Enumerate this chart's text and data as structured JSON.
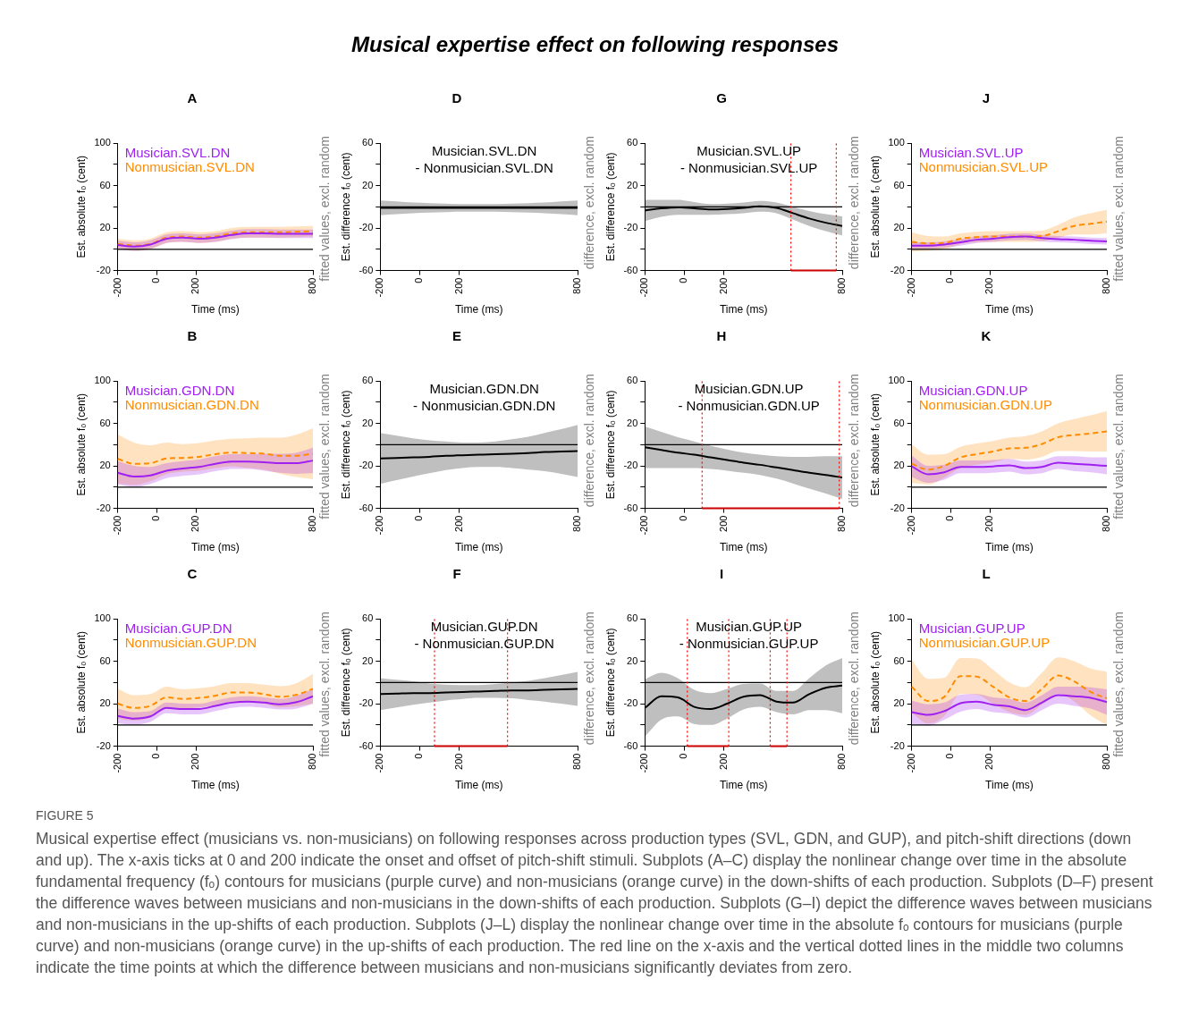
{
  "chart_data": [
    {
      "type": "other",
      "title": "Musical expertise effect on following responses",
      "annotations": [
        "FIGURE 5",
        "Musical expertise effect (musicians vs. non-musicians) on following responses across production types (SVL, GDN, and GUP), and pitch-shift directions (down and up). The x-axis ticks at 0 and 200 indicate the onset and offset of pitch-shift stimuli. Subplots (A–C) display the nonlinear change over time in the absolute fundamental frequency (fₒ) contours for musicians (purple curve) and non-musicians (orange curve) in the down-shifts of each production. Subplots (D–F) present the difference waves between musicians and non-musicians in the down-shifts of each production. Subplots (G–I) depict the difference waves between musicians and non-musicians in the up-shifts of each production. Subplots (J–L) display the nonlinear change over time in the absolute fₒ contours for musicians (purple curve) and non-musicians (orange curve) in the up-shifts of each production. The red line on the x-axis and the vertical dotted lines in the middle two columns indicate the time points at which the difference between musicians and non-musicians significantly deviates from zero."
      ]
    },
    {
      "type": "line",
      "title": "A",
      "xlabel": "Time (ms)",
      "ylabel": "Est. absolute fₒ (cent)",
      "y2label": "fitted values, excl. random",
      "legend": "top left",
      "xlim": [
        -200,
        800
      ],
      "xticks": [
        -200,
        0,
        200,
        800
      ],
      "ylim": [
        -20,
        100
      ],
      "yticks": [
        -20,
        {
          "value": 0,
          "label": null
        },
        20,
        {
          "value": 40,
          "label": null
        },
        60,
        {
          "value": 80,
          "label": null
        },
        100
      ],
      "ref_lines": [
        {
          "axis": "y",
          "value": 0,
          "color": "#000000",
          "line_style": "solid"
        }
      ],
      "x": [
        -200,
        -117,
        -33,
        50,
        133,
        217,
        300,
        383,
        467,
        550,
        633,
        717,
        800
      ],
      "series": [
        {
          "name": "Musician.SVL.DN",
          "color": "#a020f0",
          "line_style": "solid",
          "values": [
            4,
            2.5,
            4.5,
            10,
            11,
            10,
            11,
            13.5,
            15,
            15,
            14.5,
            14.5,
            14.5
          ],
          "lower": [
            0,
            -1.5,
            0.5,
            6,
            7,
            6,
            7,
            9.5,
            11,
            11,
            10.5,
            10.5,
            10.5
          ],
          "upper": [
            8,
            6.5,
            8.5,
            14,
            15,
            14,
            15,
            17.5,
            19,
            19,
            18.5,
            18.5,
            18.5
          ]
        },
        {
          "name": "Nonmusician.SVL.DN",
          "color": "#ff8c00",
          "line_style": "dashed",
          "values": [
            5,
            3.5,
            5,
            11,
            12,
            11,
            12,
            15,
            16,
            16,
            16,
            16.5,
            17
          ],
          "lower": [
            0,
            -1.5,
            0,
            6,
            7,
            6,
            7,
            10,
            11,
            11,
            11,
            11.5,
            12
          ],
          "upper": [
            10,
            8.5,
            10,
            16,
            17,
            16,
            17,
            20,
            21,
            21,
            21,
            21.5,
            22
          ]
        }
      ]
    },
    {
      "type": "line",
      "title": "D",
      "xlabel": "Time (ms)",
      "ylabel": "Est. difference fₒ (cent)",
      "y2label": "difference, excl. random",
      "annotations": [
        "Musician.SVL.DN",
        "- Nonmusician.SVL.DN"
      ],
      "xlim": [
        -200,
        800
      ],
      "xticks": [
        -200,
        0,
        200,
        800
      ],
      "ylim": [
        -60,
        60
      ],
      "yticks": [
        -60,
        {
          "value": -40,
          "label": null
        },
        -20,
        {
          "value": 0,
          "label": null
        },
        20,
        {
          "value": 40,
          "label": null
        },
        60
      ],
      "ref_lines": [
        {
          "axis": "y",
          "value": 0,
          "color": "#000000",
          "line_style": "solid"
        }
      ],
      "x": [
        -200,
        -117,
        -33,
        50,
        133,
        217,
        300,
        383,
        467,
        550,
        633,
        717,
        800
      ],
      "series": [
        {
          "color": "#000000",
          "line_style": "solid",
          "values": [
            -1,
            -1,
            -1,
            -1,
            -1,
            -1,
            -1,
            -1,
            -1,
            -1,
            -1,
            -1,
            -1
          ],
          "lower": [
            -8,
            -7,
            -6,
            -5.5,
            -5,
            -4.5,
            -4.5,
            -4.5,
            -5,
            -5.5,
            -6,
            -7,
            -8
          ],
          "upper": [
            6,
            5,
            4,
            3.5,
            3,
            2.5,
            2.5,
            2.5,
            3,
            3.5,
            4,
            5,
            6
          ]
        }
      ]
    },
    {
      "type": "line",
      "title": "G",
      "xlabel": "Time (ms)",
      "ylabel": "Est. difference fₒ (cent)",
      "y2label": "difference, excl. random",
      "annotations": [
        "Musician.SVL.UP",
        "- Nonmusician.SVL.UP"
      ],
      "xlim": [
        -200,
        800
      ],
      "xticks": [
        -200,
        0,
        200,
        800
      ],
      "ylim": [
        -60,
        60
      ],
      "yticks": [
        -60,
        {
          "value": -40,
          "label": null
        },
        -20,
        {
          "value": 0,
          "label": null
        },
        20,
        {
          "value": 40,
          "label": null
        },
        60
      ],
      "ref_lines": [
        {
          "axis": "y",
          "value": 0,
          "color": "#000000",
          "line_style": "solid"
        },
        {
          "axis": "x",
          "value": 540,
          "color": "#ff0000",
          "line_style": "dotted"
        },
        {
          "axis": "x",
          "value": 770,
          "color": "#ff0000",
          "line_style": "dotted"
        }
      ],
      "x": [
        -200,
        -117,
        -33,
        50,
        133,
        217,
        300,
        383,
        467,
        550,
        633,
        717,
        800
      ],
      "series": [
        {
          "color": "#000000",
          "line_style": "solid",
          "values": [
            -3.5,
            -1.5,
            -0.5,
            -1.5,
            -2.5,
            -2,
            -1,
            0.5,
            -1,
            -6,
            -11,
            -15,
            -18
          ],
          "lower": [
            -13.5,
            -9.5,
            -7.5,
            -7.5,
            -7.5,
            -7,
            -6,
            -4.5,
            -6,
            -12,
            -18,
            -23,
            -27
          ],
          "upper": [
            6.5,
            6.5,
            6.5,
            4.5,
            2.5,
            3,
            4,
            5.5,
            4,
            0,
            -4,
            -7,
            -9
          ]
        },
        {
          "type": "line",
          "color": "#cc0000",
          "line_style": "solid",
          "x": [
            540,
            770
          ],
          "values": [
            -60,
            -60
          ]
        }
      ]
    },
    {
      "type": "line",
      "title": "J",
      "xlabel": "Time (ms)",
      "ylabel": "Est. absolute fₒ (cent)",
      "y2label": "fitted values, excl. random",
      "legend": "top left",
      "xlim": [
        -200,
        800
      ],
      "xticks": [
        -200,
        0,
        200,
        800
      ],
      "ylim": [
        -20,
        100
      ],
      "yticks": [
        -20,
        {
          "value": 0,
          "label": null
        },
        20,
        {
          "value": 40,
          "label": null
        },
        60,
        {
          "value": 80,
          "label": null
        },
        100
      ],
      "ref_lines": [
        {
          "axis": "y",
          "value": 0,
          "color": "#000000",
          "line_style": "solid"
        }
      ],
      "x": [
        -200,
        -117,
        -33,
        50,
        133,
        217,
        300,
        383,
        467,
        550,
        633,
        717,
        800
      ],
      "series": [
        {
          "name": "Musician.SVL.UP",
          "color": "#a020f0",
          "line_style": "solid",
          "values": [
            3.5,
            3.5,
            4.5,
            6.5,
            9,
            10,
            11.5,
            12,
            10.5,
            9.5,
            9,
            8,
            7.5
          ],
          "lower": [
            0.5,
            0.5,
            1.5,
            3.5,
            6,
            7,
            8.5,
            9,
            7.5,
            6.5,
            6,
            5,
            4.5
          ],
          "upper": [
            6.5,
            6.5,
            7.5,
            9.5,
            12,
            13,
            14.5,
            15,
            13.5,
            12.5,
            12,
            11,
            10.5
          ]
        },
        {
          "name": "Nonmusician.SVL.UP",
          "color": "#ff8c00",
          "line_style": "dashed",
          "values": [
            7,
            5.5,
            6,
            10,
            11.5,
            12,
            12,
            12,
            12.5,
            17,
            22,
            24,
            26
          ],
          "lower": [
            -2,
            -1.5,
            0,
            5,
            6.5,
            7,
            7,
            7,
            7.5,
            11,
            14,
            14,
            15
          ],
          "upper": [
            16,
            12.5,
            12,
            15,
            16.5,
            17,
            17,
            17,
            17.5,
            23,
            30,
            34,
            37
          ]
        }
      ]
    },
    {
      "type": "line",
      "title": "B",
      "xlabel": "Time (ms)",
      "ylabel": "Est. absolute fₒ (cent)",
      "y2label": "fitted values, excl. random",
      "legend": "top left",
      "xlim": [
        -200,
        800
      ],
      "xticks": [
        -200,
        0,
        200,
        800
      ],
      "ylim": [
        -20,
        100
      ],
      "yticks": [
        -20,
        {
          "value": 0,
          "label": null
        },
        20,
        {
          "value": 40,
          "label": null
        },
        60,
        {
          "value": 80,
          "label": null
        },
        100
      ],
      "ref_lines": [
        {
          "axis": "y",
          "value": 0,
          "color": "#000000",
          "line_style": "solid"
        }
      ],
      "x": [
        -200,
        -117,
        -33,
        50,
        133,
        217,
        300,
        383,
        467,
        550,
        633,
        717,
        800
      ],
      "series": [
        {
          "name": "Musician.GDN.DN",
          "color": "#a020f0",
          "line_style": "solid",
          "values": [
            13.5,
            10,
            11,
            15.5,
            17.5,
            19,
            22,
            24,
            24,
            23.5,
            22.5,
            22.5,
            25
          ],
          "lower": [
            2.5,
            0,
            3,
            8.5,
            10.5,
            12,
            15,
            17,
            17,
            15.5,
            13.5,
            12.5,
            13
          ],
          "upper": [
            24.5,
            20,
            19,
            22.5,
            24.5,
            26,
            29,
            31,
            31,
            31.5,
            31.5,
            32.5,
            37
          ]
        },
        {
          "name": "Nonmusician.GDN.DN",
          "color": "#ff8c00",
          "line_style": "dashed",
          "values": [
            26.5,
            22,
            22.5,
            27,
            27.5,
            28.5,
            31,
            32.5,
            32,
            31.5,
            29.5,
            29.5,
            31.5
          ],
          "lower": [
            3.5,
            2,
            5.5,
            12,
            14.5,
            15.5,
            18,
            19.5,
            18,
            16.5,
            12.5,
            9.5,
            7.5
          ],
          "upper": [
            49.5,
            42,
            39.5,
            42,
            40.5,
            41.5,
            44,
            45.5,
            46,
            46.5,
            46.5,
            49.5,
            55.5
          ]
        }
      ]
    },
    {
      "type": "line",
      "title": "E",
      "xlabel": "Time (ms)",
      "ylabel": "Est. difference fₒ (cent)",
      "y2label": "difference, excl. random",
      "annotations": [
        "Musician.GDN.DN",
        "- Nonmusician.GDN.DN"
      ],
      "xlim": [
        -200,
        800
      ],
      "xticks": [
        -200,
        0,
        200,
        800
      ],
      "ylim": [
        -60,
        60
      ],
      "yticks": [
        -60,
        {
          "value": -40,
          "label": null
        },
        -20,
        {
          "value": 0,
          "label": null
        },
        20,
        {
          "value": 40,
          "label": null
        },
        60
      ],
      "ref_lines": [
        {
          "axis": "y",
          "value": 0,
          "color": "#000000",
          "line_style": "solid"
        }
      ],
      "x": [
        -200,
        -117,
        -33,
        50,
        133,
        217,
        300,
        383,
        467,
        550,
        633,
        717,
        800
      ],
      "series": [
        {
          "color": "#000000",
          "line_style": "solid",
          "values": [
            -13,
            -12.5,
            -12,
            -11.5,
            -10.5,
            -10,
            -9.5,
            -9,
            -8.5,
            -8,
            -7,
            -6.5,
            -6
          ],
          "lower": [
            -37,
            -33.5,
            -30,
            -27,
            -24,
            -22,
            -21,
            -21,
            -22,
            -23.5,
            -25,
            -27.5,
            -30.5
          ],
          "upper": [
            11,
            8.5,
            6,
            4,
            3,
            2,
            2,
            3,
            5,
            7.5,
            11,
            14.5,
            18.5
          ]
        }
      ]
    },
    {
      "type": "line",
      "title": "H",
      "xlabel": "Time (ms)",
      "ylabel": "Est. difference fₒ (cent)",
      "y2label": "difference, excl. random",
      "annotations": [
        "Musician.GDN.UP",
        "- Nonmusician.GDN.UP"
      ],
      "xlim": [
        -200,
        800
      ],
      "xticks": [
        -200,
        0,
        200,
        800
      ],
      "ylim": [
        -60,
        60
      ],
      "yticks": [
        -60,
        {
          "value": -40,
          "label": null
        },
        -20,
        {
          "value": 0,
          "label": null
        },
        20,
        {
          "value": 40,
          "label": null
        },
        60
      ],
      "ref_lines": [
        {
          "axis": "y",
          "value": 0,
          "color": "#000000",
          "line_style": "solid"
        },
        {
          "axis": "x",
          "value": 90,
          "color": "#ff0000",
          "line_style": "dotted"
        },
        {
          "axis": "x",
          "value": 785,
          "color": "#ff0000",
          "line_style": "dotted"
        }
      ],
      "x": [
        -200,
        -117,
        -33,
        50,
        133,
        217,
        300,
        383,
        467,
        550,
        633,
        717,
        800
      ],
      "series": [
        {
          "color": "#000000",
          "line_style": "solid",
          "values": [
            -2.5,
            -5,
            -7.5,
            -9.5,
            -12,
            -14.5,
            -17,
            -19,
            -21.5,
            -24,
            -26.5,
            -28.5,
            -31
          ],
          "lower": [
            -22,
            -22,
            -22,
            -22,
            -23,
            -24.5,
            -26.5,
            -28.5,
            -32,
            -36.5,
            -41.5,
            -46,
            -51
          ],
          "upper": [
            17,
            12,
            7,
            3,
            -1,
            -4.5,
            -7.5,
            -9.5,
            -11,
            -11.5,
            -11.5,
            -11,
            -11
          ]
        },
        {
          "type": "line",
          "color": "#cc0000",
          "line_style": "solid",
          "x": [
            90,
            785
          ],
          "values": [
            -60,
            -60
          ]
        }
      ]
    },
    {
      "type": "line",
      "title": "K",
      "xlabel": "Time (ms)",
      "ylabel": "Est. absolute fₒ (cent)",
      "y2label": "fitted values, excl. random",
      "legend": "top left",
      "xlim": [
        -200,
        800
      ],
      "xticks": [
        -200,
        0,
        200,
        800
      ],
      "ylim": [
        -20,
        100
      ],
      "yticks": [
        -20,
        {
          "value": 0,
          "label": null
        },
        20,
        {
          "value": 40,
          "label": null
        },
        60,
        {
          "value": 80,
          "label": null
        },
        100
      ],
      "ref_lines": [
        {
          "axis": "y",
          "value": 0,
          "color": "#000000",
          "line_style": "solid"
        }
      ],
      "x": [
        -200,
        -117,
        -33,
        50,
        133,
        217,
        300,
        383,
        467,
        550,
        633,
        717,
        800
      ],
      "series": [
        {
          "name": "Musician.GDN.UP",
          "color": "#a020f0",
          "line_style": "solid",
          "values": [
            19.5,
            12,
            14,
            19,
            19,
            19.5,
            20.5,
            18,
            19,
            23,
            22,
            21,
            20
          ],
          "lower": [
            9.5,
            4,
            7,
            13,
            13,
            13.5,
            14.5,
            12,
            13,
            17,
            15,
            14,
            12
          ],
          "upper": [
            29.5,
            20,
            21,
            25,
            25,
            25.5,
            26.5,
            24,
            25,
            29,
            29,
            28,
            28
          ]
        },
        {
          "name": "Nonmusician.GDN.UP",
          "color": "#ff8c00",
          "line_style": "dashed",
          "values": [
            22,
            16.5,
            20,
            28,
            31,
            33.5,
            36.5,
            37,
            40.5,
            47,
            49,
            50.5,
            52.5
          ],
          "lower": [
            4,
            2.5,
            9,
            18,
            21,
            23.5,
            26.5,
            26,
            28.5,
            34,
            34,
            33.5,
            33.5
          ],
          "upper": [
            40,
            30.5,
            31,
            38,
            41,
            43.5,
            46.5,
            48,
            52.5,
            60,
            64,
            67.5,
            71.5
          ]
        }
      ]
    },
    {
      "type": "line",
      "title": "C",
      "xlabel": "Time (ms)",
      "ylabel": "Est. absolute fₒ (cent)",
      "y2label": "fitted values, excl. random",
      "legend": "top left",
      "xlim": [
        -200,
        800
      ],
      "xticks": [
        -200,
        0,
        200,
        800
      ],
      "ylim": [
        -20,
        100
      ],
      "yticks": [
        -20,
        {
          "value": 0,
          "label": null
        },
        20,
        {
          "value": 40,
          "label": null
        },
        60,
        {
          "value": 80,
          "label": null
        },
        100
      ],
      "ref_lines": [
        {
          "axis": "y",
          "value": 0,
          "color": "#000000",
          "line_style": "solid"
        }
      ],
      "x": [
        -200,
        -117,
        -33,
        50,
        133,
        217,
        300,
        383,
        467,
        550,
        633,
        717,
        800
      ],
      "series": [
        {
          "name": "Musician.GUP.DN",
          "color": "#a020f0",
          "line_style": "solid",
          "values": [
            8.5,
            6,
            8,
            16,
            15,
            15,
            18,
            21,
            22,
            21,
            19.5,
            21.5,
            27
          ],
          "lower": [
            1.5,
            0,
            3,
            11,
            10,
            10,
            13,
            16,
            17,
            16,
            14.5,
            15.5,
            20
          ],
          "upper": [
            15.5,
            12,
            13,
            21,
            20,
            20,
            23,
            26,
            27,
            26,
            24.5,
            27.5,
            34
          ]
        },
        {
          "name": "Nonmusician.GUP.DN",
          "color": "#ff8c00",
          "line_style": "dashed",
          "values": [
            20,
            16,
            18,
            26,
            24.5,
            25.5,
            27.5,
            30.5,
            30.5,
            29,
            26.5,
            28.5,
            34
          ],
          "lower": [
            6,
            4,
            7,
            16,
            15.5,
            16.5,
            18.5,
            21.5,
            21.5,
            20,
            16.5,
            17.5,
            20
          ],
          "upper": [
            34,
            28,
            29,
            36,
            33.5,
            34.5,
            36.5,
            39.5,
            39.5,
            38,
            36.5,
            39.5,
            48
          ]
        }
      ]
    },
    {
      "type": "line",
      "title": "F",
      "xlabel": "Time (ms)",
      "ylabel": "Est. difference fₒ (cent)",
      "y2label": "difference, excl. random",
      "annotations": [
        "Musician.GUP.DN",
        "- Nonmusician.GUP.DN"
      ],
      "xlim": [
        -200,
        800
      ],
      "xticks": [
        -200,
        0,
        200,
        800
      ],
      "ylim": [
        -60,
        60
      ],
      "yticks": [
        -60,
        {
          "value": -40,
          "label": null
        },
        -20,
        {
          "value": 0,
          "label": null
        },
        20,
        {
          "value": 40,
          "label": null
        },
        60
      ],
      "ref_lines": [
        {
          "axis": "y",
          "value": 0,
          "color": "#000000",
          "line_style": "solid"
        },
        {
          "axis": "x",
          "value": 75,
          "color": "#ff0000",
          "line_style": "dotted"
        },
        {
          "axis": "x",
          "value": 445,
          "color": "#ff0000",
          "line_style": "dotted"
        }
      ],
      "x": [
        -200,
        -117,
        -33,
        50,
        133,
        217,
        300,
        383,
        467,
        550,
        633,
        717,
        800
      ],
      "series": [
        {
          "color": "#000000",
          "line_style": "solid",
          "values": [
            -11,
            -10.5,
            -10,
            -10,
            -9.5,
            -9,
            -8.5,
            -8,
            -7.5,
            -7.5,
            -7,
            -6.5,
            -6
          ],
          "lower": [
            -26,
            -23.5,
            -21,
            -19,
            -17,
            -15.5,
            -14.5,
            -14.5,
            -15,
            -16.5,
            -18,
            -20,
            -22
          ],
          "upper": [
            4,
            2.5,
            1,
            -1,
            -2,
            -2.5,
            -2.5,
            -1.5,
            0,
            1.5,
            4,
            7,
            10
          ]
        },
        {
          "type": "line",
          "color": "#cc0000",
          "line_style": "solid",
          "x": [
            75,
            445
          ],
          "values": [
            -60,
            -60
          ]
        }
      ]
    },
    {
      "type": "line",
      "title": "I",
      "xlabel": "Time (ms)",
      "ylabel": "Est. difference fₒ (cent)",
      "y2label": "difference, excl. random",
      "annotations": [
        "Musician.GUP.UP",
        "- Nonmusician.GUP.UP"
      ],
      "xlim": [
        -200,
        800
      ],
      "xticks": [
        -200,
        0,
        200,
        800
      ],
      "ylim": [
        -60,
        60
      ],
      "yticks": [
        -60,
        {
          "value": -40,
          "label": null
        },
        -20,
        {
          "value": 0,
          "label": null
        },
        20,
        {
          "value": 40,
          "label": null
        },
        60
      ],
      "ref_lines": [
        {
          "axis": "y",
          "value": 0,
          "color": "#000000",
          "line_style": "solid"
        },
        {
          "axis": "x",
          "value": 15,
          "color": "#ff0000",
          "line_style": "dotted"
        },
        {
          "axis": "x",
          "value": 225,
          "color": "#ff0000",
          "line_style": "dotted"
        },
        {
          "axis": "x",
          "value": 435,
          "color": "#ff0000",
          "line_style": "dotted"
        },
        {
          "axis": "x",
          "value": 520,
          "color": "#ff0000",
          "line_style": "dotted"
        }
      ],
      "x": [
        -200,
        -117,
        -33,
        50,
        133,
        217,
        300,
        383,
        467,
        550,
        633,
        717,
        800
      ],
      "series": [
        {
          "color": "#000000",
          "line_style": "solid",
          "values": [
            -24,
            -13,
            -14,
            -23,
            -25,
            -20,
            -13.5,
            -12,
            -18,
            -19,
            -11,
            -5,
            -3
          ],
          "lower": [
            -51,
            -35,
            -32,
            -39,
            -40,
            -34,
            -25.5,
            -23,
            -28,
            -30,
            -26,
            -26,
            -29
          ],
          "upper": [
            3,
            9,
            4,
            -7,
            -10,
            -6,
            -1.5,
            -1,
            -8,
            -8,
            4,
            16,
            23
          ]
        },
        {
          "type": "line",
          "color": "#cc0000",
          "line_style": "solid",
          "x": [
            15,
            225
          ],
          "values": [
            -60,
            -60
          ]
        },
        {
          "type": "line",
          "color": "#cc0000",
          "line_style": "solid",
          "x": [
            435,
            520
          ],
          "values": [
            -60,
            -60
          ]
        }
      ]
    },
    {
      "type": "line",
      "title": "L",
      "xlabel": "Time (ms)",
      "ylabel": "Est. absolute fₒ (cent)",
      "y2label": "fitted values, excl. random",
      "legend": "top left",
      "xlim": [
        -200,
        800
      ],
      "xticks": [
        -200,
        0,
        200,
        800
      ],
      "ylim": [
        -20,
        100
      ],
      "yticks": [
        -20,
        {
          "value": 0,
          "label": null
        },
        20,
        {
          "value": 40,
          "label": null
        },
        60,
        {
          "value": 80,
          "label": null
        },
        100
      ],
      "ref_lines": [
        {
          "axis": "y",
          "value": 0,
          "color": "#000000",
          "line_style": "solid"
        }
      ],
      "x": [
        -200,
        -117,
        -33,
        50,
        133,
        217,
        300,
        383,
        467,
        550,
        633,
        717,
        800
      ],
      "series": [
        {
          "name": "Musician.GUP.UP",
          "color": "#a020f0",
          "line_style": "solid",
          "values": [
            12,
            9.5,
            13,
            20.5,
            22,
            19,
            17.5,
            14,
            21,
            28,
            27,
            25.5,
            21.5
          ],
          "lower": [
            1,
            -0.5,
            5,
            12.5,
            15,
            12,
            10.5,
            7,
            14,
            20,
            18,
            15.5,
            9.5
          ],
          "upper": [
            23,
            19.5,
            21,
            28.5,
            29,
            26,
            24.5,
            21,
            28,
            36,
            36,
            35.5,
            33.5
          ]
        },
        {
          "name": "Nonmusician.GUP.UP",
          "color": "#ff8c00",
          "line_style": "dashed",
          "values": [
            36,
            22.5,
            26.5,
            46,
            45.5,
            36,
            26,
            22.5,
            34,
            46.5,
            41,
            31,
            25
          ],
          "lower": [
            11,
            1.5,
            8.5,
            29,
            28.5,
            20,
            12,
            9.5,
            19,
            29.5,
            22,
            9,
            0
          ],
          "upper": [
            61,
            43.5,
            44.5,
            63,
            62.5,
            52,
            40,
            35.5,
            49,
            63.5,
            60,
            53,
            50
          ]
        }
      ]
    }
  ]
}
